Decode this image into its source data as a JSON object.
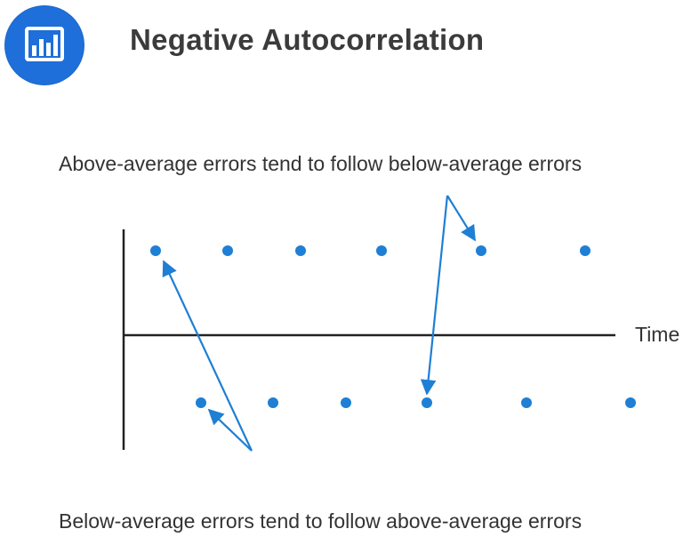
{
  "header": {
    "title": "Negative Autocorrelation",
    "logo_icon": "bar-chart-icon"
  },
  "diagram": {
    "top_annotation": "Above-average errors tend to follow below-average errors",
    "bottom_annotation": "Below-average errors tend to follow above-average errors",
    "time_axis_label": "Time",
    "point_color": "#1e7fd4",
    "axis_color": "#222222",
    "arrow_color": "#1e7fd4"
  }
}
